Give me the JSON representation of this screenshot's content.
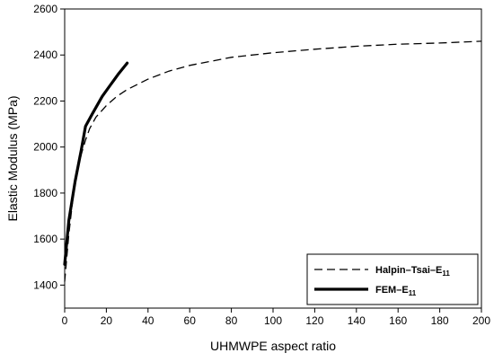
{
  "chart_data": {
    "type": "line",
    "title": "",
    "xlabel": "UHMWPE aspect ratio",
    "ylabel": "Elastic Modulus (MPa)",
    "xlim": [
      0,
      200
    ],
    "ylim": [
      1300,
      2600
    ],
    "xticks": [
      0,
      20,
      40,
      60,
      80,
      100,
      120,
      140,
      160,
      180,
      200
    ],
    "yticks": [
      1400,
      1600,
      1800,
      2000,
      2200,
      2400,
      2600
    ],
    "grid": false,
    "legend_position": "bottom-right",
    "series": [
      {
        "name": "Halpin–Tsai–E",
        "name_subscript": "11",
        "style": "dashed",
        "color": "#000000",
        "x": [
          0,
          2,
          4,
          6,
          8,
          10,
          12,
          15,
          20,
          25,
          30,
          40,
          50,
          60,
          80,
          100,
          120,
          140,
          160,
          180,
          200
        ],
        "y": [
          1415,
          1620,
          1780,
          1890,
          1970,
          2030,
          2080,
          2130,
          2180,
          2220,
          2250,
          2295,
          2330,
          2355,
          2390,
          2410,
          2425,
          2438,
          2447,
          2452,
          2460
        ]
      },
      {
        "name": "FEM–E",
        "name_subscript": "11",
        "style": "solid",
        "color": "#000000",
        "x": [
          0,
          2,
          5,
          8,
          10,
          13,
          18,
          22,
          26,
          30
        ],
        "y": [
          1490,
          1680,
          1850,
          1990,
          2090,
          2140,
          2220,
          2270,
          2320,
          2365
        ]
      }
    ]
  }
}
